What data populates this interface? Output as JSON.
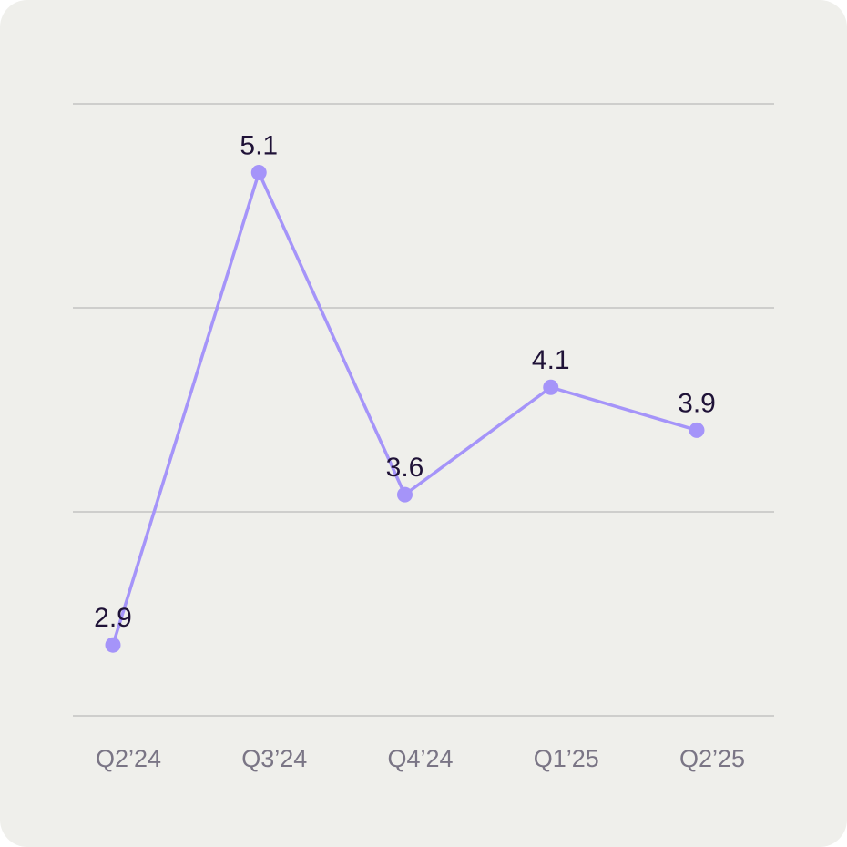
{
  "chart_data": {
    "type": "line",
    "categories": [
      "Q2’24",
      "Q3’24",
      "Q4’24",
      "Q1’25",
      "Q2’25"
    ],
    "values": [
      2.9,
      5.1,
      3.6,
      4.1,
      3.9
    ],
    "color": "#a594f9",
    "ylim": [
      2.57,
      5.42
    ],
    "grid": true
  }
}
